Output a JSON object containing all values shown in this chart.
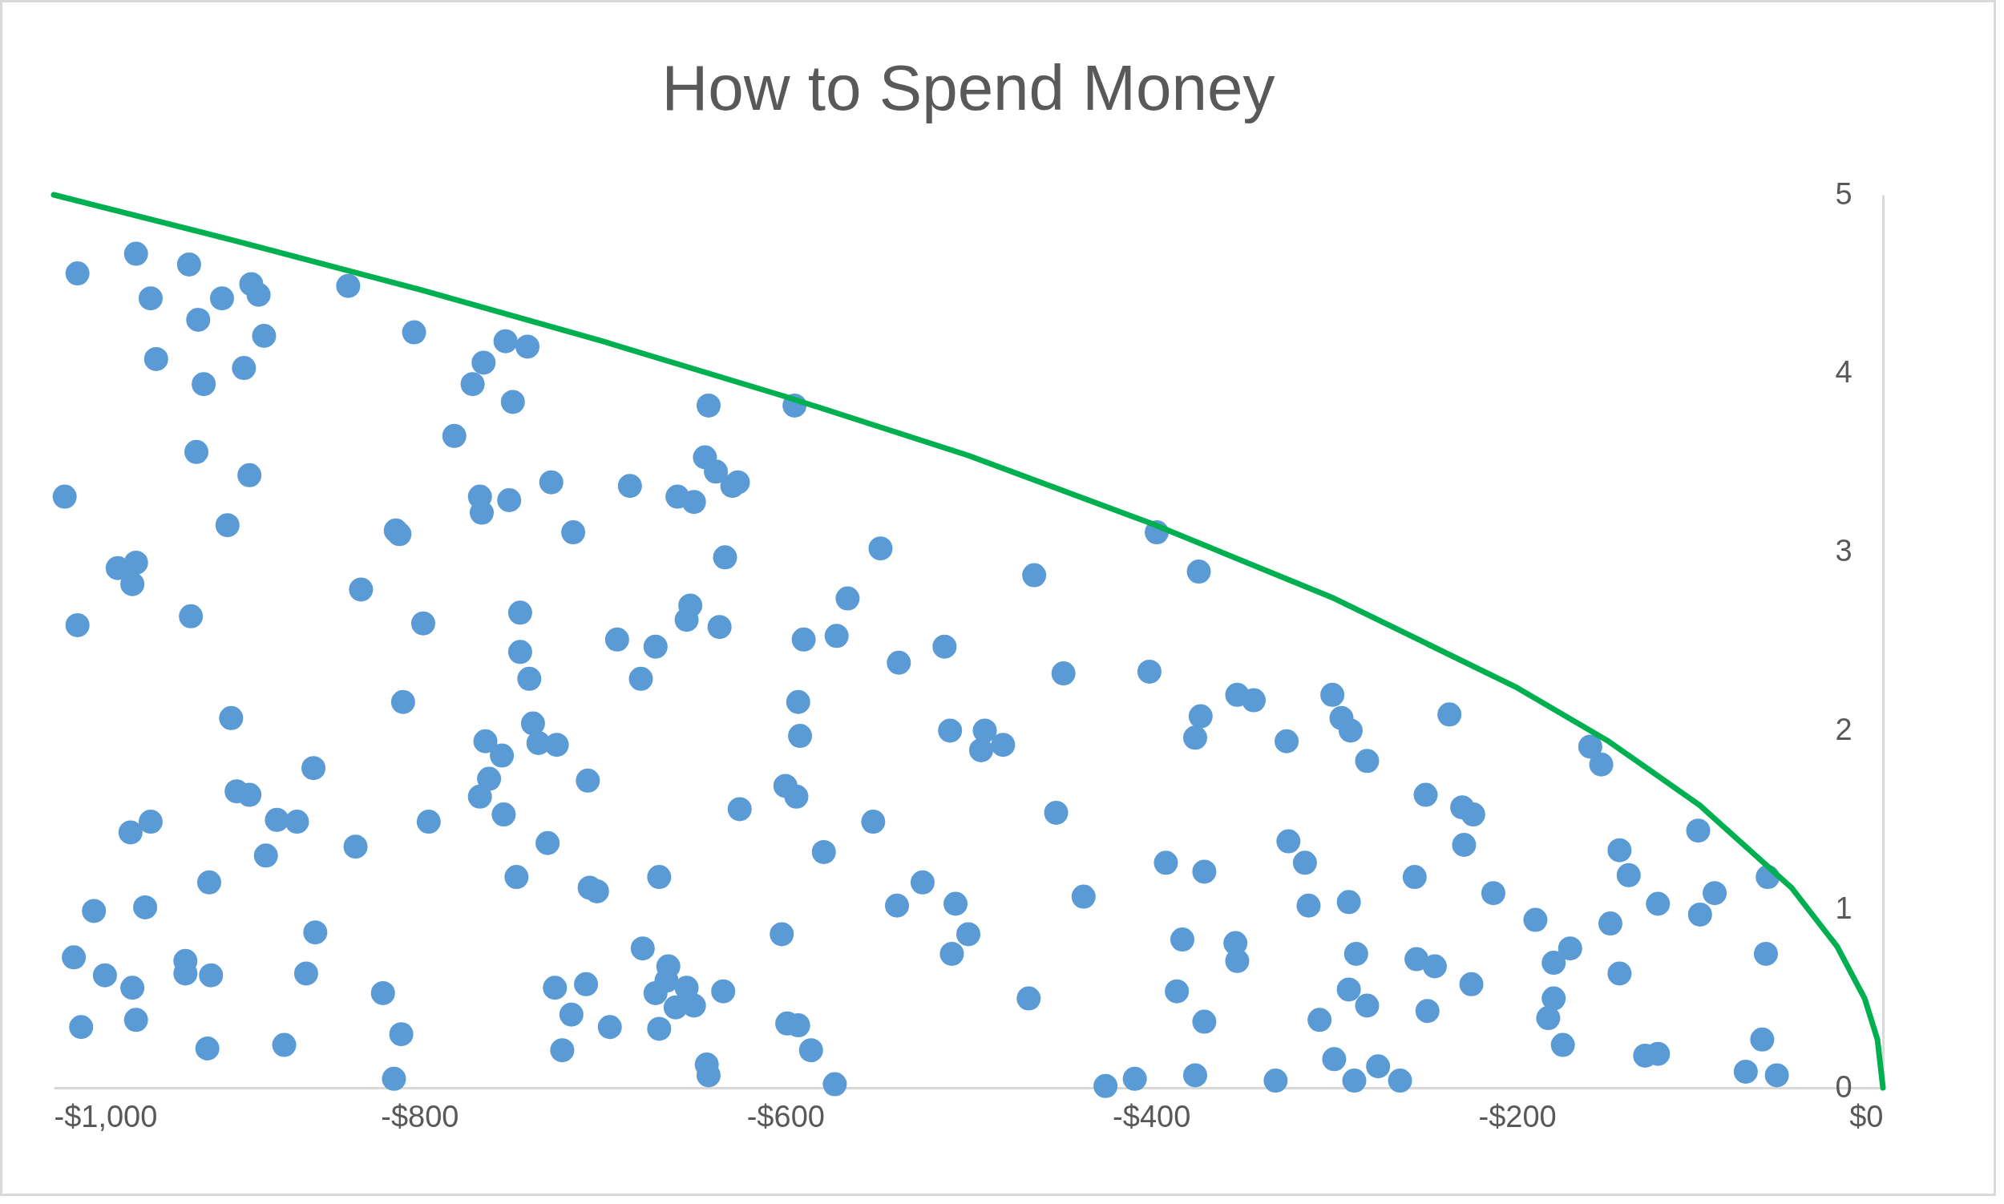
{
  "chart_data": {
    "type": "scatter",
    "title": "How to Spend Money",
    "marker": "circle",
    "xlim": [
      -1000,
      0
    ],
    "ylim": [
      0,
      5
    ],
    "xticks": [
      {
        "value": -1000,
        "label": "-$1,000"
      },
      {
        "value": -800,
        "label": "-$800"
      },
      {
        "value": -600,
        "label": "-$600"
      },
      {
        "value": -400,
        "label": "-$400"
      },
      {
        "value": -200,
        "label": "-$200"
      },
      {
        "value": 0,
        "label": "$0"
      }
    ],
    "yticks": [
      0,
      1,
      2,
      3,
      4,
      5
    ],
    "series": [
      {
        "color": "#5b9bd5",
        "x": [
          -987,
          -994,
          -987,
          -989,
          -985,
          -978,
          -972,
          -955,
          -947,
          -944,
          -965,
          -955,
          -957,
          -958,
          -947,
          -950,
          -957,
          -955,
          -926,
          -921,
          -918,
          -922,
          -925,
          -908,
          -896,
          -892,
          -888,
          -885,
          -893,
          -905,
          -903,
          -900,
          -893,
          -915,
          -928,
          -928,
          -914,
          -916,
          -884,
          -878,
          -867,
          -862,
          -857,
          -858,
          -874,
          -839,
          -832,
          -835,
          -820,
          -814,
          -810,
          -813,
          -811,
          -809,
          -803,
          -798,
          -795,
          -781,
          -771,
          -765,
          -753,
          -741,
          -749,
          -767,
          -766,
          -751,
          -745,
          -745,
          -740,
          -738,
          -735,
          -725,
          -764,
          -762,
          -755,
          -767,
          -754,
          -747,
          -728,
          -716,
          -730,
          -708,
          -707,
          -703,
          -726,
          -717,
          -722,
          -709,
          -696,
          -692,
          -685,
          -679,
          -671,
          -678,
          -669,
          -671,
          -669,
          -664,
          -665,
          -660,
          -654,
          -650,
          -659,
          -650,
          -652,
          -654,
          -636,
          -642,
          -644,
          -638,
          -629,
          -626,
          -633,
          -625,
          -634,
          -643,
          -642,
          -595,
          -590,
          -593,
          -592,
          -600,
          -594,
          -602,
          -599,
          -593,
          -586,
          -573,
          -579,
          -572,
          -566,
          -548,
          -552,
          -538,
          -539,
          -525,
          -513,
          -510,
          -507,
          -500,
          -509,
          -491,
          -493,
          -481,
          -464,
          -467,
          -448,
          -452,
          -437,
          -425,
          -409,
          -401,
          -397,
          -392,
          -386,
          -383,
          -376,
          -376,
          -373,
          -374,
          -371,
          -371,
          -354,
          -353,
          -353,
          -344,
          -332,
          -326,
          -325,
          -316,
          -314,
          -308,
          -301,
          -296,
          -291,
          -282,
          -292,
          -288,
          -292,
          -282,
          -300,
          -289,
          -276,
          -264,
          -256,
          -255,
          -250,
          -249,
          -245,
          -237,
          -230,
          -224,
          -229,
          -225,
          -213,
          -190,
          -180,
          -171,
          -180,
          -183,
          -175,
          -160,
          -154,
          -144,
          -139,
          -149,
          -144,
          -123,
          -130,
          -123,
          -101,
          -100,
          -92,
          -63,
          -64,
          -66,
          -75,
          -58
        ],
        "values": [
          4.56,
          3.31,
          2.59,
          0.73,
          0.34,
          0.99,
          0.63,
          4.67,
          4.42,
          4.08,
          2.91,
          2.94,
          2.82,
          1.43,
          1.49,
          1.01,
          0.56,
          0.38,
          4.61,
          4.3,
          3.94,
          3.56,
          2.64,
          4.42,
          4.03,
          4.5,
          4.44,
          4.21,
          3.43,
          3.15,
          2.07,
          1.66,
          1.64,
          1.15,
          0.71,
          0.64,
          0.63,
          0.22,
          1.3,
          1.5,
          1.49,
          0.64,
          0.87,
          1.79,
          0.24,
          4.49,
          2.79,
          1.35,
          0.53,
          0.05,
          0.3,
          3.12,
          3.1,
          2.16,
          4.23,
          2.6,
          1.49,
          3.65,
          3.94,
          4.06,
          4.18,
          4.15,
          3.84,
          3.31,
          3.22,
          3.29,
          2.66,
          2.44,
          2.29,
          2.04,
          1.93,
          1.92,
          1.94,
          1.73,
          1.86,
          1.63,
          1.53,
          1.18,
          3.39,
          3.11,
          1.37,
          1.72,
          1.12,
          1.1,
          0.56,
          0.41,
          0.21,
          0.58,
          0.34,
          2.51,
          3.37,
          2.29,
          2.47,
          0.78,
          1.18,
          0.53,
          0.33,
          0.68,
          0.6,
          0.45,
          0.56,
          0.46,
          3.31,
          3.28,
          2.7,
          2.62,
          2.58,
          3.82,
          3.53,
          3.45,
          3.37,
          3.39,
          2.97,
          1.56,
          0.54,
          0.13,
          0.07,
          3.82,
          2.51,
          2.16,
          1.97,
          1.69,
          1.63,
          0.86,
          0.36,
          0.35,
          0.21,
          0.02,
          1.32,
          2.53,
          2.74,
          3.02,
          1.49,
          2.38,
          1.02,
          1.15,
          2.47,
          2.0,
          1.03,
          0.86,
          0.75,
          2.0,
          1.89,
          1.92,
          2.87,
          0.5,
          2.32,
          1.54,
          1.07,
          0.01,
          0.05,
          2.33,
          3.11,
          1.26,
          0.54,
          0.83,
          0.07,
          1.96,
          2.08,
          2.89,
          1.21,
          0.37,
          0.81,
          0.71,
          2.2,
          2.17,
          0.04,
          1.94,
          1.38,
          1.26,
          1.02,
          0.38,
          2.2,
          2.07,
          2.0,
          1.83,
          1.04,
          0.75,
          0.55,
          0.46,
          0.16,
          0.04,
          0.12,
          0.04,
          1.18,
          0.72,
          1.64,
          0.43,
          0.68,
          2.09,
          1.57,
          1.53,
          1.36,
          0.58,
          1.09,
          0.94,
          0.7,
          0.78,
          0.5,
          0.39,
          0.24,
          1.91,
          1.81,
          1.33,
          1.19,
          0.92,
          0.64,
          1.03,
          0.18,
          0.19,
          1.44,
          0.97,
          1.09,
          1.18,
          0.75,
          0.27,
          0.09,
          0.07
        ]
      },
      {
        "type": "line",
        "color": "#00b050",
        "marker": "none",
        "x": [
          -1000,
          -900,
          -800,
          -700,
          -600,
          -500,
          -400,
          -300,
          -200,
          -150,
          -100,
          -50,
          -25,
          -10,
          -3,
          0
        ],
        "values": [
          5,
          4.74,
          4.47,
          4.18,
          3.87,
          3.54,
          3.16,
          2.74,
          2.24,
          1.94,
          1.58,
          1.12,
          0.79,
          0.5,
          0.27,
          0
        ]
      }
    ]
  }
}
